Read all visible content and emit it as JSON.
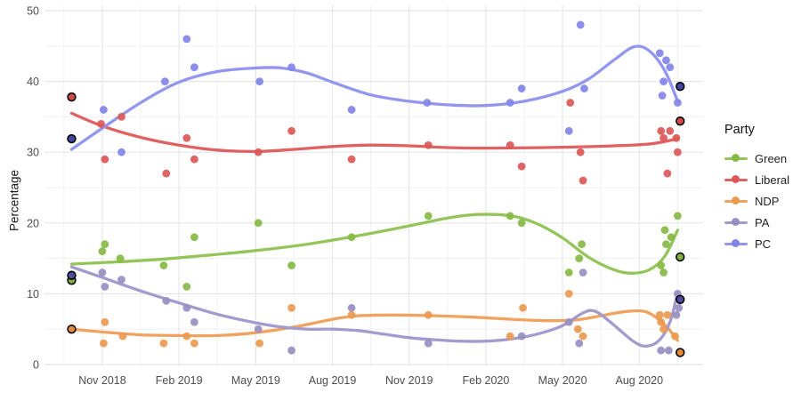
{
  "chart_data": {
    "type": "scatter",
    "title": "",
    "xlabel": "",
    "ylabel": "Percentage",
    "legend_title": "Party",
    "ylim": [
      0,
      50
    ],
    "yticks": [
      0,
      10,
      20,
      30,
      40,
      50
    ],
    "yticks_minor": [
      5,
      15,
      25,
      35,
      45
    ],
    "xticks": [
      {
        "m": 2,
        "label": "Nov 2018"
      },
      {
        "m": 5,
        "label": "Feb 2019"
      },
      {
        "m": 8,
        "label": "May 2019"
      },
      {
        "m": 11,
        "label": "Aug 2019"
      },
      {
        "m": 14,
        "label": "Nov 2019"
      },
      {
        "m": 17,
        "label": "Feb 2020"
      },
      {
        "m": 20,
        "label": "May 2020"
      },
      {
        "m": 23,
        "label": "Aug 2020"
      }
    ],
    "xticks_minor_m": [
      0.5,
      3.5,
      6.5,
      9.5,
      12.5,
      15.5,
      18.5,
      21.5,
      24.5
    ],
    "x_note": "m = months since Sep 2018; points with third value 1 are election results (black ring)",
    "grid": true,
    "legend_position": "right",
    "series": [
      {
        "name": "Green",
        "color": "#86ba44",
        "line_color": "#94c55a",
        "election_color": "#7fb23c",
        "points": [
          [
            0.8,
            11.9,
            1
          ],
          [
            2.0,
            16
          ],
          [
            2.1,
            17
          ],
          [
            2.7,
            15
          ],
          [
            4.4,
            14
          ],
          [
            5.3,
            11
          ],
          [
            5.6,
            18
          ],
          [
            8.1,
            20
          ],
          [
            9.4,
            14
          ],
          [
            11.75,
            18
          ],
          [
            14.75,
            21
          ],
          [
            17.95,
            21
          ],
          [
            18.4,
            20
          ],
          [
            20.25,
            13
          ],
          [
            20.65,
            15
          ],
          [
            20.75,
            17
          ],
          [
            23.85,
            14
          ],
          [
            23.95,
            13
          ],
          [
            24.0,
            19
          ],
          [
            24.05,
            17
          ],
          [
            24.25,
            18
          ],
          [
            24.5,
            21
          ],
          [
            24.6,
            15.2,
            1
          ]
        ],
        "trend": [
          [
            0.8,
            14.2
          ],
          [
            2,
            14.4
          ],
          [
            4,
            14.8
          ],
          [
            6,
            15.4
          ],
          [
            8,
            16.1
          ],
          [
            10,
            17.0
          ],
          [
            12,
            18.2
          ],
          [
            14,
            19.6
          ],
          [
            15.5,
            20.7
          ],
          [
            16.7,
            21.2
          ],
          [
            18,
            21.0
          ],
          [
            19,
            19.9
          ],
          [
            20,
            17.9
          ],
          [
            21,
            15.2
          ],
          [
            22,
            13.4
          ],
          [
            22.7,
            12.9
          ],
          [
            23.4,
            13.4
          ],
          [
            24,
            15.3
          ],
          [
            24.5,
            19.0
          ]
        ]
      },
      {
        "name": "Liberal",
        "color": "#dc5858",
        "line_color": "#e06161",
        "election_color": "#d24a4a",
        "points": [
          [
            0.8,
            37.8,
            1
          ],
          [
            1.95,
            34
          ],
          [
            2.1,
            29
          ],
          [
            2.75,
            35
          ],
          [
            4.5,
            27
          ],
          [
            5.3,
            32
          ],
          [
            5.6,
            29
          ],
          [
            8.1,
            30
          ],
          [
            9.4,
            33
          ],
          [
            11.75,
            29
          ],
          [
            14.75,
            31
          ],
          [
            17.95,
            31
          ],
          [
            18.4,
            28
          ],
          [
            20.3,
            37
          ],
          [
            20.7,
            30
          ],
          [
            20.8,
            26
          ],
          [
            23.85,
            33
          ],
          [
            23.95,
            32
          ],
          [
            24.1,
            27
          ],
          [
            24.2,
            33
          ],
          [
            24.45,
            32
          ],
          [
            24.5,
            30
          ],
          [
            24.6,
            34.4,
            1
          ]
        ],
        "trend": [
          [
            0.8,
            35.5
          ],
          [
            2,
            33.7
          ],
          [
            3.5,
            32.1
          ],
          [
            5,
            31.0
          ],
          [
            6.5,
            30.3
          ],
          [
            8,
            30.1
          ],
          [
            9.5,
            30.4
          ],
          [
            11,
            30.8
          ],
          [
            12.5,
            31.0
          ],
          [
            14,
            30.9
          ],
          [
            16,
            30.6
          ],
          [
            18,
            30.6
          ],
          [
            20,
            30.7
          ],
          [
            22,
            30.9
          ],
          [
            23.5,
            31.2
          ],
          [
            24.5,
            31.9
          ]
        ]
      },
      {
        "name": "NDP",
        "color": "#ec9950",
        "line_color": "#f0a25e",
        "election_color": "#e68c3a",
        "points": [
          [
            0.8,
            5.0,
            1
          ],
          [
            2.05,
            3
          ],
          [
            2.1,
            6
          ],
          [
            2.8,
            4
          ],
          [
            4.4,
            3
          ],
          [
            5.3,
            4
          ],
          [
            5.6,
            3
          ],
          [
            8.15,
            3
          ],
          [
            9.4,
            8
          ],
          [
            11.75,
            7
          ],
          [
            14.75,
            7
          ],
          [
            17.95,
            4
          ],
          [
            18.45,
            8
          ],
          [
            20.25,
            10
          ],
          [
            20.6,
            5
          ],
          [
            20.8,
            4
          ],
          [
            23.8,
            7
          ],
          [
            23.85,
            6
          ],
          [
            23.95,
            5
          ],
          [
            24.1,
            7
          ],
          [
            24.4,
            4
          ],
          [
            24.6,
            1.7,
            1
          ]
        ],
        "trend": [
          [
            0.8,
            5.0
          ],
          [
            2,
            4.6
          ],
          [
            3.5,
            4.2
          ],
          [
            5,
            4.1
          ],
          [
            6.5,
            4.1
          ],
          [
            8,
            4.5
          ],
          [
            9.5,
            5.3
          ],
          [
            11,
            6.4
          ],
          [
            12,
            6.9
          ],
          [
            13.5,
            7.0
          ],
          [
            15,
            6.9
          ],
          [
            16.5,
            6.7
          ],
          [
            18,
            6.4
          ],
          [
            19.3,
            6.2
          ],
          [
            20.5,
            6.3
          ],
          [
            21.5,
            6.9
          ],
          [
            22.5,
            7.5
          ],
          [
            23.3,
            7.4
          ],
          [
            24,
            5.6
          ],
          [
            24.5,
            3.4
          ]
        ]
      },
      {
        "name": "PA",
        "color": "#978fc1",
        "line_color": "#a39bcd",
        "election_color": "#4f4d9e",
        "points": [
          [
            0.8,
            12.6,
            1
          ],
          [
            2.0,
            13
          ],
          [
            2.1,
            11
          ],
          [
            2.75,
            12
          ],
          [
            4.5,
            9
          ],
          [
            5.3,
            8
          ],
          [
            5.6,
            6
          ],
          [
            8.1,
            5
          ],
          [
            9.4,
            2
          ],
          [
            11.75,
            8
          ],
          [
            14.75,
            3
          ],
          [
            18.4,
            4
          ],
          [
            20.25,
            6
          ],
          [
            20.65,
            3
          ],
          [
            20.8,
            13
          ],
          [
            23.85,
            2
          ],
          [
            24.15,
            2
          ],
          [
            24.45,
            7
          ],
          [
            24.5,
            10
          ],
          [
            24.55,
            8
          ],
          [
            24.6,
            9.2,
            1
          ]
        ],
        "trend": [
          [
            0.8,
            13.8
          ],
          [
            2,
            12.3
          ],
          [
            3.5,
            10.4
          ],
          [
            5,
            8.7
          ],
          [
            6.5,
            7.1
          ],
          [
            8,
            5.9
          ],
          [
            9,
            5.3
          ],
          [
            10,
            5.0
          ],
          [
            11,
            5.0
          ],
          [
            12,
            4.8
          ],
          [
            13,
            4.3
          ],
          [
            14,
            3.8
          ],
          [
            15,
            3.5
          ],
          [
            16,
            3.3
          ],
          [
            17,
            3.3
          ],
          [
            18,
            3.6
          ],
          [
            19,
            4.3
          ],
          [
            20,
            5.5
          ],
          [
            20.8,
            7.3
          ],
          [
            21.3,
            7.5
          ],
          [
            22,
            5.6
          ],
          [
            22.8,
            3.2
          ],
          [
            23.3,
            2.6
          ],
          [
            23.8,
            3.5
          ],
          [
            24.2,
            6.0
          ],
          [
            24.5,
            10.2
          ]
        ]
      },
      {
        "name": "PC",
        "color": "#8185e9",
        "line_color": "#9296ee",
        "election_color": "#4145a6",
        "points": [
          [
            0.8,
            31.9,
            1
          ],
          [
            2.05,
            36
          ],
          [
            2.75,
            30
          ],
          [
            4.45,
            40
          ],
          [
            5.3,
            46
          ],
          [
            5.6,
            42
          ],
          [
            8.15,
            40
          ],
          [
            9.4,
            42
          ],
          [
            11.75,
            36
          ],
          [
            14.7,
            37
          ],
          [
            17.95,
            37
          ],
          [
            18.4,
            39
          ],
          [
            20.25,
            33
          ],
          [
            20.7,
            48
          ],
          [
            20.85,
            39
          ],
          [
            23.8,
            44
          ],
          [
            23.9,
            38
          ],
          [
            23.95,
            40
          ],
          [
            24.05,
            43
          ],
          [
            24.2,
            42
          ],
          [
            24.5,
            37
          ],
          [
            24.6,
            39.3,
            1
          ]
        ],
        "trend": [
          [
            0.8,
            30.4
          ],
          [
            2,
            33.4
          ],
          [
            3.5,
            37.0
          ],
          [
            5,
            39.9
          ],
          [
            6.5,
            41.4
          ],
          [
            8,
            41.9
          ],
          [
            9,
            41.9
          ],
          [
            10,
            41.2
          ],
          [
            11,
            39.9
          ],
          [
            12.5,
            38.1
          ],
          [
            14,
            37.2
          ],
          [
            15.5,
            36.7
          ],
          [
            17,
            36.6
          ],
          [
            18.5,
            37.2
          ],
          [
            20,
            38.6
          ],
          [
            21,
            40.3
          ],
          [
            22,
            43.0
          ],
          [
            22.8,
            44.9
          ],
          [
            23.4,
            44.3
          ],
          [
            24,
            41.5
          ],
          [
            24.5,
            37.2
          ]
        ]
      }
    ]
  }
}
